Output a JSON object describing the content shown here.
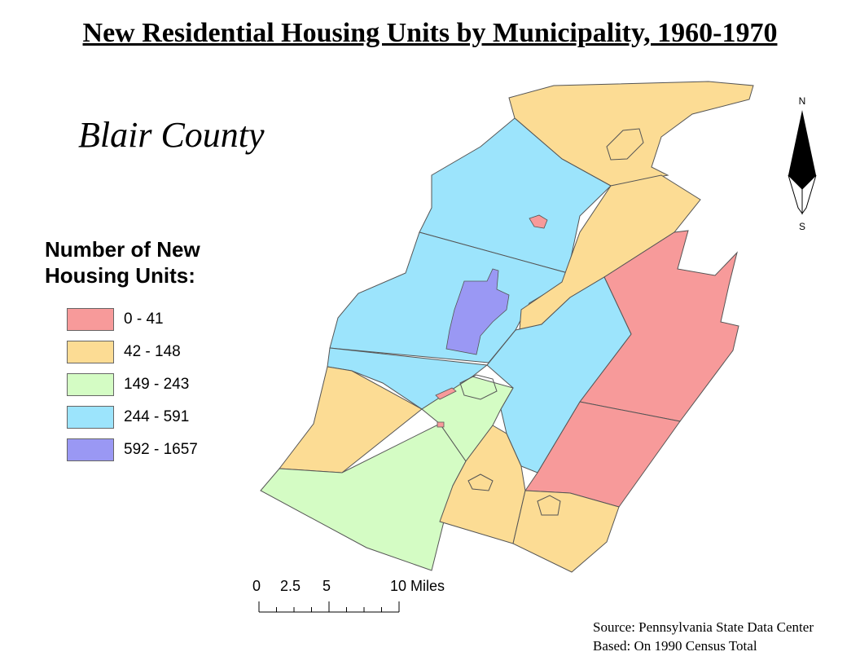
{
  "title": "New Residential Housing Units by Municipality, 1960-1970",
  "subtitle": "Blair County",
  "legend": {
    "title": "Number of New Housing Units:",
    "items": [
      {
        "label": "0 - 41",
        "color": "#f79a9a"
      },
      {
        "label": "42 - 148",
        "color": "#fcdc94"
      },
      {
        "label": "149 - 243",
        "color": "#d4fcc4"
      },
      {
        "label": "244 - 591",
        "color": "#9ce4fc"
      },
      {
        "label": "592 - 1657",
        "color": "#9a98f4"
      }
    ]
  },
  "compass": {
    "north": "N",
    "south": "S"
  },
  "scale_bar": {
    "labels": [
      "0",
      "2.5",
      "5",
      "10 Miles"
    ]
  },
  "source": [
    "Source: Pennsylvania State Data Center",
    "Based: On 1990 Census Total"
  ]
}
